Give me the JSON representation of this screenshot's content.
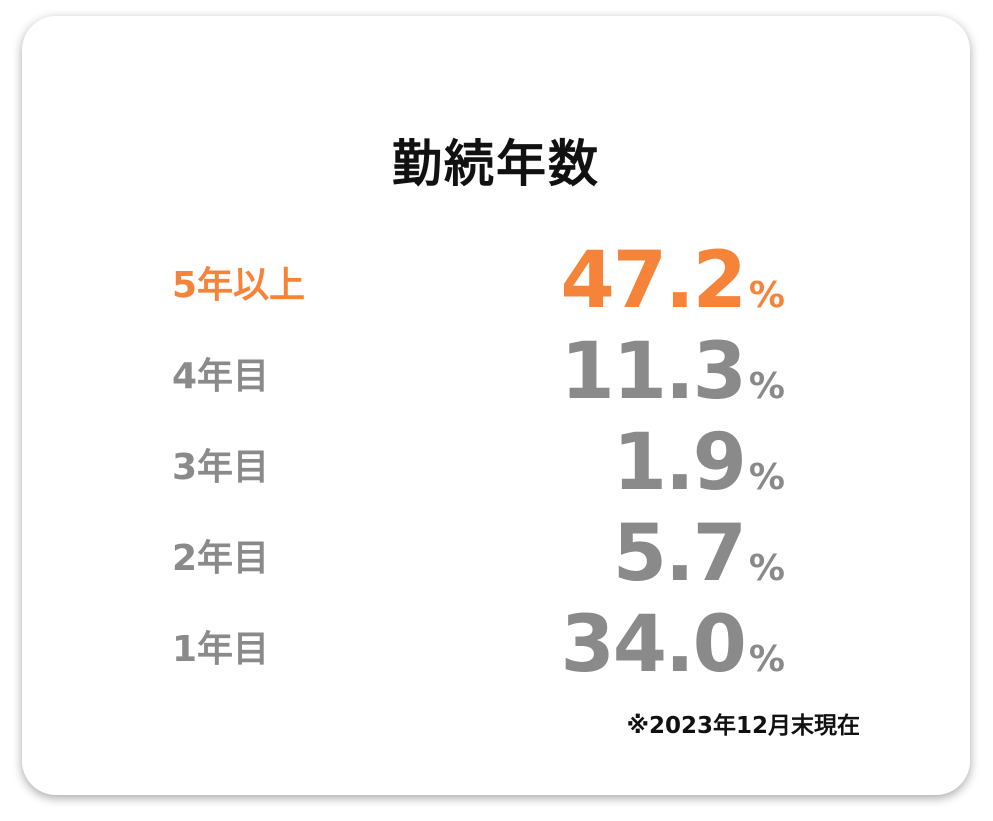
{
  "title": "勤続年数",
  "rows": [
    {
      "label": "5年以上",
      "value": "47.2",
      "unit": "%"
    },
    {
      "label": "4年目",
      "value": "11.3",
      "unit": "%"
    },
    {
      "label": "3年目",
      "value": "1.9",
      "unit": "%"
    },
    {
      "label": "2年目",
      "value": "5.7",
      "unit": "%"
    },
    {
      "label": "1年目",
      "value": "34.0",
      "unit": "%"
    }
  ],
  "note": "※2023年12月末現在"
}
